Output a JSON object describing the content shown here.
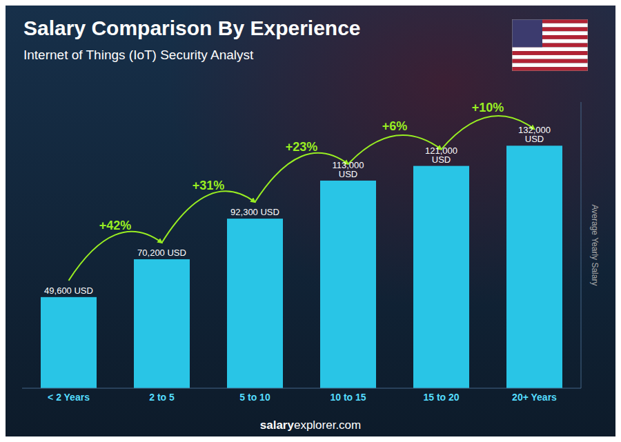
{
  "chart_data": {
    "type": "bar",
    "title": "Salary Comparison By Experience",
    "subtitle": "Internet of Things (IoT) Security Analyst",
    "categories": [
      "< 2 Years",
      "2 to 5",
      "5 to 10",
      "10 to 15",
      "15 to 20",
      "20+ Years"
    ],
    "values": [
      49600,
      70200,
      92300,
      113000,
      121000,
      132000
    ],
    "value_labels": [
      "49,600 USD",
      "70,200 USD",
      "92,300 USD",
      "113,000 USD",
      "121,000 USD",
      "132,000 USD"
    ],
    "data_labels": true,
    "annotations": [
      "+42%",
      "+31%",
      "+23%",
      "+6%",
      "+10%"
    ],
    "ylabel": "Average Yearly Salary",
    "footer": [
      "salary",
      "explorer.com"
    ],
    "color": "#29c5e6",
    "ylim": [
      0,
      155760
    ],
    "tick_labels": "x",
    "grid": false
  }
}
